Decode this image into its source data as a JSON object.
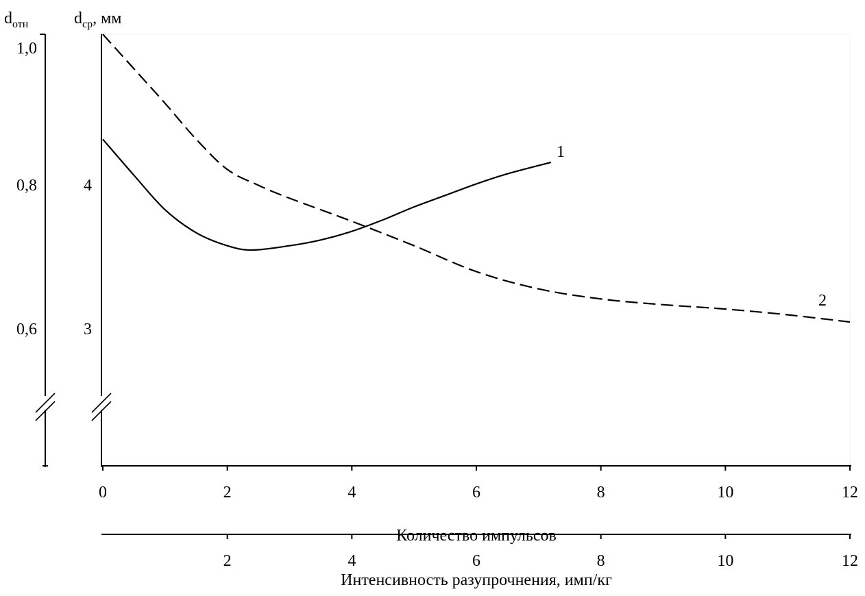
{
  "chart_data": {
    "type": "line",
    "x_axes": [
      {
        "label": "Количество импульсов",
        "range": [
          0,
          12
        ],
        "ticks": [
          0,
          2,
          4,
          6,
          8,
          10,
          12
        ]
      },
      {
        "label": "Интенсивность разупрочнения, имп/кг",
        "range": [
          0,
          12
        ],
        "ticks": [
          2,
          4,
          6,
          8,
          10,
          12
        ]
      }
    ],
    "y_axes": [
      {
        "label_main": "d",
        "label_sub": "отн",
        "ticks": [
          0.6,
          0.8,
          1.0
        ],
        "tick_labels": [
          "0,6",
          "0,8",
          "1,0"
        ]
      },
      {
        "label_main": "d",
        "label_sub": "ср",
        "label_suffix": ", мм",
        "range": [
          2,
          5
        ],
        "ticks": [
          3,
          4
        ],
        "tick_labels": [
          "3",
          "4"
        ],
        "axis_break": true
      }
    ],
    "series": [
      {
        "label": "1",
        "line_style": "solid",
        "x": [
          0,
          0.5,
          1,
          1.5,
          2,
          2.4,
          3,
          3.5,
          4,
          4.5,
          5,
          5.5,
          6,
          6.5,
          7.2
        ],
        "y": [
          4.27,
          4.02,
          3.78,
          3.62,
          3.53,
          3.5,
          3.53,
          3.57,
          3.63,
          3.71,
          3.8,
          3.88,
          3.96,
          4.03,
          4.11
        ]
      },
      {
        "label": "2",
        "line_style": "dashed",
        "x": [
          0,
          0.5,
          1,
          1.5,
          2,
          2.5,
          3,
          4,
          5,
          6,
          7,
          8,
          9,
          10,
          11,
          12
        ],
        "y": [
          5.0,
          4.76,
          4.52,
          4.27,
          4.06,
          3.95,
          3.86,
          3.7,
          3.53,
          3.35,
          3.23,
          3.16,
          3.12,
          3.09,
          3.05,
          3.0
        ]
      }
    ]
  }
}
